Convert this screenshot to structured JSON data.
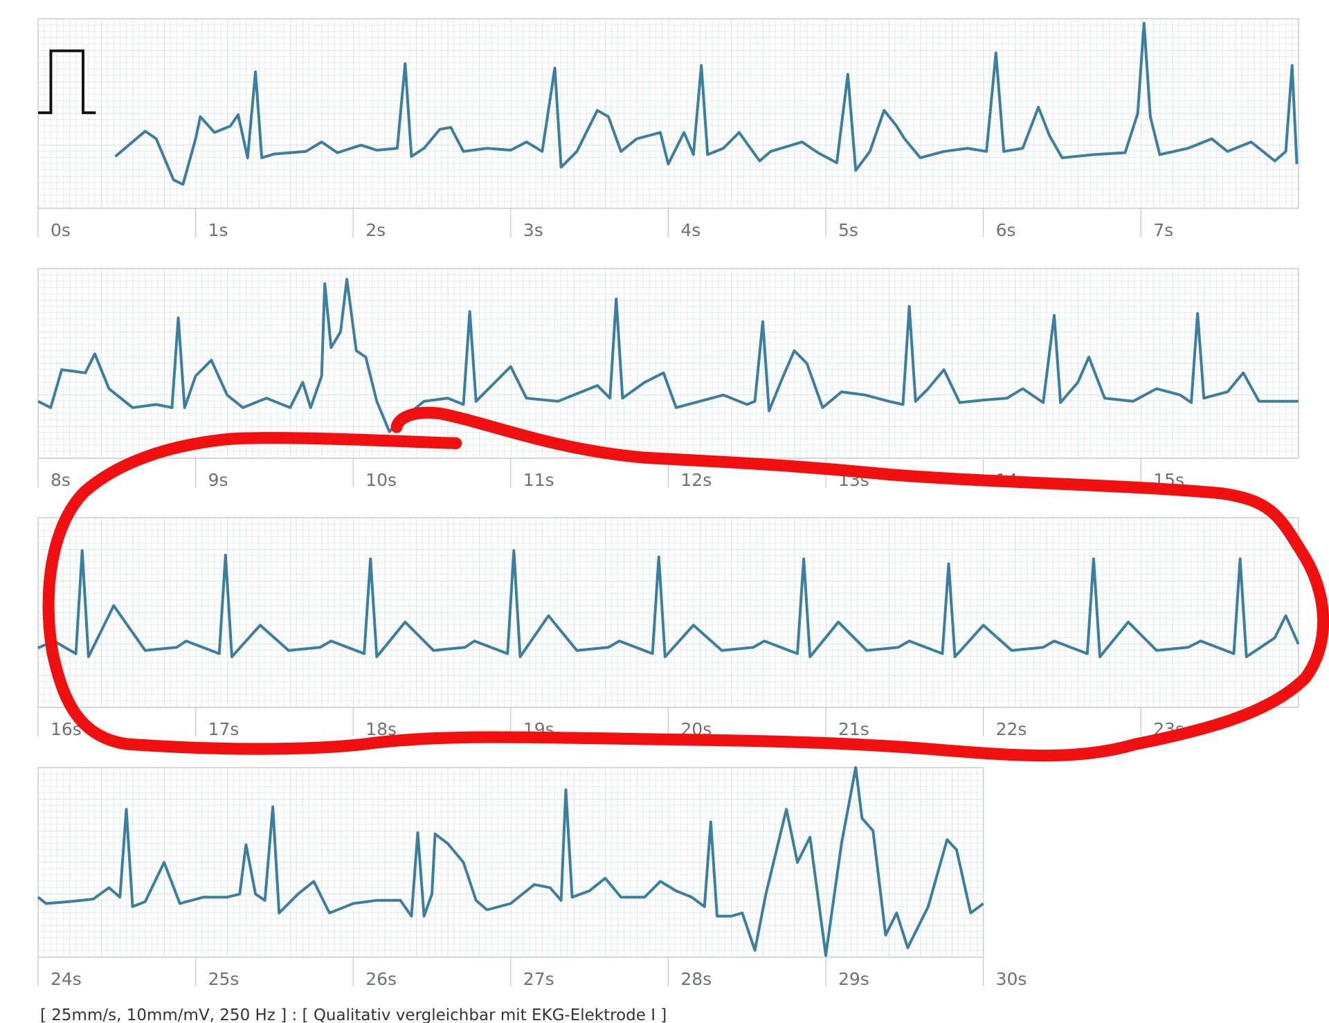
{
  "chart_data": [
    {
      "type": "line",
      "color": "#3b7fa0",
      "xlim": [
        0,
        8
      ],
      "ylim": [
        -1,
        2
      ],
      "xticks": [
        {
          "value": 0,
          "label": "0s"
        },
        {
          "value": 1,
          "label": "1s"
        },
        {
          "value": 2,
          "label": "2s"
        },
        {
          "value": 3,
          "label": "3s"
        },
        {
          "value": 4,
          "label": "4s"
        },
        {
          "value": 5,
          "label": "5s"
        },
        {
          "value": 6,
          "label": "6s"
        },
        {
          "value": 7,
          "label": "7s"
        }
      ],
      "x": [
        0.49,
        0.68,
        0.75,
        0.86,
        0.92,
        1.0,
        1.03,
        1.12,
        1.22,
        1.27,
        1.33,
        1.38,
        1.42,
        1.5,
        1.7,
        1.8,
        1.9,
        2.05,
        2.15,
        2.28,
        2.33,
        2.37,
        2.45,
        2.55,
        2.62,
        2.7,
        2.85,
        3.0,
        3.1,
        3.2,
        3.28,
        3.32,
        3.42,
        3.55,
        3.62,
        3.7,
        3.8,
        3.95,
        4.0,
        4.1,
        4.16,
        4.21,
        4.25,
        4.35,
        4.45,
        4.58,
        4.65,
        4.85,
        4.95,
        5.07,
        5.14,
        5.19,
        5.28,
        5.37,
        5.45,
        5.5,
        5.6,
        5.75,
        5.9,
        6.02,
        6.08,
        6.13,
        6.25,
        6.35,
        6.42,
        6.5,
        6.7,
        6.9,
        6.98,
        7.02,
        7.06,
        7.12,
        7.3,
        7.45,
        7.55,
        7.7,
        7.85,
        7.92,
        7.96,
        7.99
      ],
      "values": [
        -0.18,
        0.22,
        0.1,
        -0.55,
        -0.62,
        0.1,
        0.45,
        0.2,
        0.3,
        0.48,
        -0.2,
        1.16,
        -0.2,
        -0.14,
        -0.1,
        0.05,
        -0.12,
        0.0,
        -0.08,
        -0.05,
        1.29,
        -0.18,
        -0.05,
        0.25,
        0.28,
        -0.1,
        -0.05,
        -0.08,
        0.05,
        -0.1,
        1.22,
        -0.35,
        -0.1,
        0.55,
        0.45,
        -0.1,
        0.1,
        0.2,
        -0.3,
        0.2,
        -0.15,
        1.26,
        -0.15,
        -0.05,
        0.2,
        -0.25,
        -0.1,
        0.05,
        -0.12,
        -0.28,
        1.12,
        -0.4,
        -0.1,
        0.55,
        0.3,
        0.1,
        -0.2,
        -0.1,
        -0.05,
        -0.1,
        1.46,
        -0.1,
        -0.05,
        0.6,
        0.15,
        -0.2,
        -0.15,
        -0.12,
        0.5,
        1.93,
        0.45,
        -0.15,
        -0.05,
        0.1,
        -0.1,
        0.05,
        -0.25,
        -0.1,
        1.26,
        -0.3
      ]
    },
    {
      "type": "line",
      "color": "#3b7fa0",
      "xlim": [
        8,
        16
      ],
      "ylim": [
        -1,
        2
      ],
      "xticks": [
        {
          "value": 8,
          "label": "8s"
        },
        {
          "value": 9,
          "label": "9s"
        },
        {
          "value": 10,
          "label": "10s"
        },
        {
          "value": 11,
          "label": "11s"
        },
        {
          "value": 12,
          "label": "12s"
        },
        {
          "value": 13,
          "label": "13s"
        },
        {
          "value": 14,
          "label": "14s"
        },
        {
          "value": 15,
          "label": "15s"
        }
      ],
      "x": [
        8.0,
        8.08,
        8.15,
        8.3,
        8.36,
        8.45,
        8.6,
        8.75,
        8.85,
        8.89,
        8.93,
        9.0,
        9.1,
        9.2,
        9.3,
        9.45,
        9.6,
        9.68,
        9.73,
        9.8,
        9.82,
        9.86,
        9.92,
        9.96,
        10.02,
        10.08,
        10.15,
        10.23,
        10.35,
        10.45,
        10.6,
        10.7,
        10.74,
        10.78,
        10.9,
        11.0,
        11.1,
        11.3,
        11.45,
        11.55,
        11.63,
        11.67,
        11.71,
        11.85,
        11.97,
        12.05,
        12.2,
        12.35,
        12.5,
        12.55,
        12.6,
        12.64,
        12.73,
        12.8,
        12.88,
        12.98,
        13.1,
        13.25,
        13.4,
        13.49,
        13.53,
        13.57,
        13.65,
        13.75,
        13.85,
        14.0,
        14.15,
        14.25,
        14.38,
        14.45,
        14.49,
        14.6,
        14.67,
        14.77,
        14.95,
        15.1,
        15.25,
        15.32,
        15.36,
        15.4,
        15.55,
        15.65,
        15.75,
        16.0
      ],
      "values": [
        -0.1,
        -0.2,
        0.4,
        0.35,
        0.65,
        0.1,
        -0.2,
        -0.15,
        -0.2,
        1.22,
        -0.2,
        0.3,
        0.55,
        0.0,
        -0.2,
        -0.05,
        -0.2,
        0.2,
        -0.2,
        0.3,
        1.76,
        0.75,
        1.0,
        1.83,
        0.7,
        0.6,
        -0.1,
        -0.58,
        -0.3,
        -0.1,
        -0.05,
        -0.15,
        1.32,
        -0.1,
        0.2,
        0.45,
        -0.05,
        -0.1,
        0.05,
        0.15,
        -0.05,
        1.52,
        -0.05,
        0.2,
        0.35,
        -0.2,
        -0.1,
        0.0,
        -0.15,
        -0.1,
        1.16,
        -0.25,
        0.3,
        0.7,
        0.5,
        -0.2,
        0.05,
        0.0,
        -0.1,
        -0.15,
        1.4,
        -0.1,
        0.1,
        0.4,
        -0.12,
        -0.08,
        -0.05,
        0.1,
        -0.12,
        1.26,
        -0.12,
        0.2,
        0.6,
        -0.05,
        -0.1,
        0.1,
        0.0,
        -0.12,
        1.29,
        -0.05,
        0.05,
        0.35,
        -0.1,
        -0.1
      ]
    },
    {
      "type": "line",
      "color": "#3b7fa0",
      "xlim": [
        16,
        24
      ],
      "ylim": [
        -1,
        2
      ],
      "xticks": [
        {
          "value": 16,
          "label": "16s"
        },
        {
          "value": 17,
          "label": "17s"
        },
        {
          "value": 18,
          "label": "18s"
        },
        {
          "value": 19,
          "label": "19s"
        },
        {
          "value": 20,
          "label": "20s"
        },
        {
          "value": 21,
          "label": "21s"
        },
        {
          "value": 22,
          "label": "22s"
        },
        {
          "value": 23,
          "label": "23s"
        }
      ],
      "x": [
        16.0,
        16.1,
        16.24,
        16.28,
        16.32,
        16.48,
        16.68,
        16.88,
        16.94,
        17.15,
        17.19,
        17.23,
        17.41,
        17.59,
        17.79,
        17.86,
        18.07,
        18.11,
        18.15,
        18.33,
        18.51,
        18.71,
        18.77,
        18.98,
        19.02,
        19.06,
        19.24,
        19.42,
        19.62,
        19.69,
        19.9,
        19.94,
        19.98,
        20.16,
        20.34,
        20.54,
        20.61,
        20.82,
        20.86,
        20.9,
        21.08,
        21.26,
        21.46,
        21.53,
        21.74,
        21.78,
        21.82,
        22.0,
        22.18,
        22.38,
        22.45,
        22.66,
        22.7,
        22.74,
        22.92,
        23.1,
        23.3,
        23.38,
        23.59,
        23.63,
        23.67,
        23.85,
        23.92,
        24.0
      ],
      "values": [
        -0.06,
        0.05,
        -0.15,
        1.48,
        -0.2,
        0.61,
        -0.1,
        -0.05,
        0.05,
        -0.15,
        1.41,
        -0.2,
        0.3,
        -0.1,
        -0.05,
        0.05,
        -0.15,
        1.35,
        -0.2,
        0.35,
        -0.1,
        -0.05,
        0.05,
        -0.15,
        1.48,
        -0.2,
        0.45,
        -0.1,
        -0.05,
        0.05,
        -0.15,
        1.38,
        -0.2,
        0.3,
        -0.1,
        -0.05,
        0.05,
        -0.15,
        1.35,
        -0.2,
        0.35,
        -0.1,
        -0.05,
        0.05,
        -0.15,
        1.27,
        -0.2,
        0.3,
        -0.1,
        -0.05,
        0.05,
        -0.15,
        1.35,
        -0.2,
        0.35,
        -0.1,
        -0.05,
        0.05,
        -0.15,
        1.35,
        -0.2,
        0.1,
        0.45,
        0.0
      ]
    },
    {
      "type": "line",
      "color": "#3b7fa0",
      "xlim": [
        24,
        30
      ],
      "ylim": [
        -1,
        2
      ],
      "xticks": [
        {
          "value": 24,
          "label": "24s"
        },
        {
          "value": 25,
          "label": "25s"
        },
        {
          "value": 26,
          "label": "26s"
        },
        {
          "value": 27,
          "label": "27s"
        },
        {
          "value": 28,
          "label": "28s"
        },
        {
          "value": 29,
          "label": "29s"
        },
        {
          "value": 30,
          "label": "30s"
        }
      ],
      "x": [
        24.0,
        24.05,
        24.2,
        24.35,
        24.45,
        24.52,
        24.56,
        24.6,
        24.68,
        24.8,
        24.9,
        25.05,
        25.2,
        25.28,
        25.32,
        25.38,
        25.44,
        25.49,
        25.53,
        25.65,
        25.75,
        25.85,
        26.0,
        26.15,
        26.3,
        26.37,
        26.41,
        26.45,
        26.5,
        26.52,
        26.6,
        26.7,
        26.78,
        26.85,
        27.0,
        27.15,
        27.25,
        27.32,
        27.35,
        27.39,
        27.5,
        27.6,
        27.7,
        27.85,
        27.95,
        28.05,
        28.15,
        28.23,
        28.27,
        28.31,
        28.4,
        28.47,
        28.55,
        28.62,
        28.75,
        28.82,
        28.9,
        29.0,
        29.1,
        29.19,
        29.23,
        29.3,
        29.38,
        29.45,
        29.52,
        29.65,
        29.77,
        29.83,
        29.92,
        30.0
      ],
      "values": [
        -0.05,
        -0.15,
        -0.12,
        -0.08,
        0.1,
        -0.05,
        1.34,
        -0.2,
        -0.12,
        0.5,
        -0.15,
        -0.05,
        -0.05,
        0.0,
        0.78,
        0.0,
        -0.1,
        1.38,
        -0.3,
        0.0,
        0.2,
        -0.3,
        -0.15,
        -0.1,
        -0.1,
        -0.35,
        0.97,
        -0.35,
        0.0,
        0.95,
        0.8,
        0.5,
        -0.1,
        -0.25,
        -0.15,
        0.15,
        0.1,
        -0.1,
        1.65,
        -0.05,
        0.05,
        0.25,
        -0.05,
        -0.05,
        0.2,
        0.05,
        -0.05,
        -0.2,
        1.14,
        -0.35,
        -0.35,
        -0.3,
        -0.89,
        0.0,
        1.34,
        0.5,
        0.9,
        -0.97,
        0.8,
        2.0,
        1.2,
        1.0,
        -0.65,
        -0.3,
        -0.85,
        -0.2,
        0.86,
        0.7,
        -0.3,
        -0.15
      ]
    }
  ],
  "footer": "[ 25mm/s, 10mm/mV, 250 Hz ] : [ Qualitativ vergleichbar mit EKG-Elektrode I ]"
}
